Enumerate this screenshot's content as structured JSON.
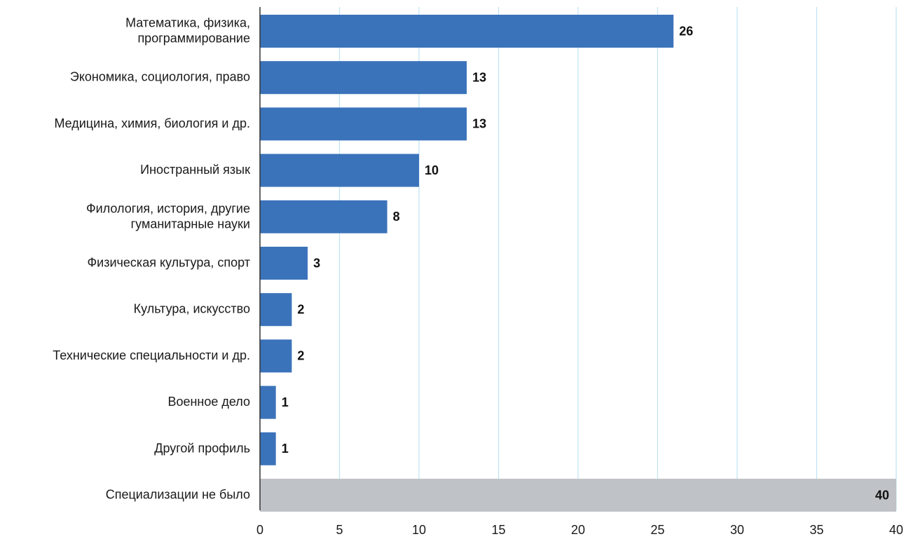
{
  "chart_data": {
    "type": "bar",
    "orientation": "horizontal",
    "categories": [
      [
        "Математика, физика,",
        "программирование"
      ],
      [
        "Экономика, социология, право"
      ],
      [
        "Медицина, химия, биология и др."
      ],
      [
        "Иностранный язык"
      ],
      [
        "Филология, история, другие",
        "гуманитарные науки"
      ],
      [
        "Физическая культура, спорт"
      ],
      [
        "Культура, искусство"
      ],
      [
        "Технические специальности и др."
      ],
      [
        "Военное дело"
      ],
      [
        "Другой профиль"
      ],
      [
        "Специализации не было"
      ]
    ],
    "values": [
      26,
      13,
      13,
      10,
      8,
      3,
      2,
      2,
      1,
      1,
      40
    ],
    "value_labels": [
      "26",
      "13",
      "13",
      "10",
      "8",
      "3",
      "2",
      "2",
      "1",
      "1",
      "40"
    ],
    "bar_colors": [
      "#3b73ba",
      "#3b73ba",
      "#3b73ba",
      "#3b73ba",
      "#3b73ba",
      "#3b73ba",
      "#3b73ba",
      "#3b73ba",
      "#3b73ba",
      "#3b73ba",
      "#bfc2c6"
    ],
    "xlim": [
      0,
      40
    ],
    "x_ticks": [
      0,
      5,
      10,
      15,
      20,
      25,
      30,
      35,
      40
    ],
    "x_tick_labels": [
      "0",
      "5",
      "10",
      "15",
      "20",
      "25",
      "30",
      "35",
      "40"
    ],
    "grid": "vertical",
    "grid_color": "#bfe2f2",
    "axis_color": "#333333",
    "title": "",
    "xlabel": "",
    "ylabel": ""
  }
}
